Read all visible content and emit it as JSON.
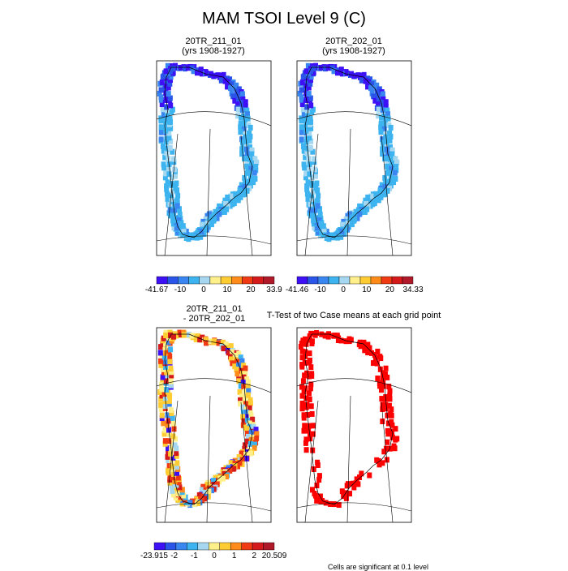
{
  "figure": {
    "title": "MAM TSOI Level 9 (C)",
    "footnote": "Cells are significant at 0.1 level"
  },
  "panels": [
    {
      "title_line1": "20TR_211_01",
      "title_line2": "(yrs 1908-1927)"
    },
    {
      "title_line1": "20TR_202_01",
      "title_line2": "(yrs 1908-1927)"
    },
    {
      "title_line1": "20TR_211_01",
      "title_line2": "- 20TR_202_01"
    },
    {
      "title_line1": "T-Test of two Case means at each grid point",
      "title_line2": ""
    }
  ],
  "colors": {
    "map_outline": "#000000",
    "significant": "#ff0000"
  },
  "chart_data": [
    {
      "type": "heatmap",
      "title": "20TR_211_01 (yrs 1908-1927)",
      "colorbar": {
        "labels": [
          "-41.67",
          "-10",
          "0",
          "10",
          "20",
          "33.9"
        ],
        "colors": [
          "#3d10f5",
          "#2a55e8",
          "#3a86f0",
          "#3db4ef",
          "#a5d8f0",
          "#fff08c",
          "#ffcc33",
          "#ff8c1a",
          "#f03a14",
          "#d41a1a",
          "#b0192a"
        ]
      }
    },
    {
      "type": "heatmap",
      "title": "20TR_202_01 (yrs 1908-1927)",
      "colorbar": {
        "labels": [
          "-41.46",
          "-10",
          "0",
          "10",
          "20",
          "34.33"
        ],
        "colors": [
          "#3d10f5",
          "#2a55e8",
          "#3a86f0",
          "#3db4ef",
          "#a5d8f0",
          "#fff08c",
          "#ffcc33",
          "#ff8c1a",
          "#f03a14",
          "#d41a1a",
          "#b0192a"
        ]
      }
    },
    {
      "type": "heatmap",
      "title": "20TR_211_01 - 20TR_202_01",
      "colorbar": {
        "labels": [
          "-23.915",
          "-2",
          "-1",
          "0",
          "1",
          "2",
          "20.509"
        ],
        "colors": [
          "#3d10f5",
          "#2a55e8",
          "#3a86f0",
          "#3db4ef",
          "#a5d8f0",
          "#fff08c",
          "#ffcc33",
          "#ff8c1a",
          "#f03a14",
          "#d41a1a",
          "#b0192a"
        ]
      }
    },
    {
      "type": "heatmap",
      "title": "T-Test of two Case means at each grid point"
    }
  ]
}
